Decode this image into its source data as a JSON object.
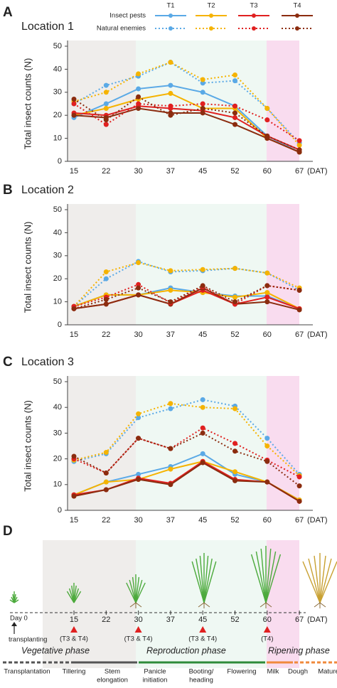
{
  "legend": {
    "columns": [
      {
        "name": "T1",
        "color": "#5aa9e6"
      },
      {
        "name": "T2",
        "color": "#f5b300"
      },
      {
        "name": "T3",
        "color": "#e02020"
      },
      {
        "name": "T4",
        "color": "#8b2c0f"
      }
    ],
    "rows": [
      {
        "name": "Insect pests",
        "dashed": false
      },
      {
        "name": "Natural enemies",
        "dashed": true
      }
    ]
  },
  "chart_data": [
    {
      "type": "line",
      "panel": "A",
      "title": "Location 1",
      "y_label": "Total insect counts (N)",
      "x_unit": "(DAT)",
      "categories": [
        15,
        22,
        30,
        37,
        45,
        52,
        60,
        67
      ],
      "ylim": [
        0,
        50
      ],
      "yticks": [
        0,
        10,
        20,
        30,
        40,
        50
      ],
      "series": [
        {
          "name": "T1",
          "group": "Insect pests",
          "color": "#5aa9e6",
          "dashed": false,
          "values": [
            19,
            25,
            31.5,
            33,
            30,
            24,
            11,
            4
          ]
        },
        {
          "name": "T2",
          "group": "Insect pests",
          "color": "#f5b300",
          "dashed": false,
          "values": [
            20,
            23,
            27,
            29.5,
            23,
            23,
            10,
            4
          ]
        },
        {
          "name": "T3",
          "group": "Insect pests",
          "color": "#e02020",
          "dashed": false,
          "values": [
            21,
            20,
            24,
            23,
            22,
            19,
            11,
            5
          ]
        },
        {
          "name": "T4",
          "group": "Insect pests",
          "color": "#8b2c0f",
          "dashed": false,
          "values": [
            20,
            19,
            23,
            21,
            21,
            16,
            10,
            4
          ]
        },
        {
          "name": "T1",
          "group": "Natural enemies",
          "color": "#5aa9e6",
          "dashed": true,
          "values": [
            25,
            33,
            37,
            43,
            34,
            35,
            23,
            8
          ]
        },
        {
          "name": "T2",
          "group": "Natural enemies",
          "color": "#f5b300",
          "dashed": true,
          "values": [
            26,
            30,
            38,
            43,
            35.5,
            37.5,
            23,
            7
          ]
        },
        {
          "name": "T3",
          "group": "Natural enemies",
          "color": "#e02020",
          "dashed": true,
          "values": [
            25,
            16,
            25,
            24,
            25,
            24,
            18,
            9
          ]
        },
        {
          "name": "T4",
          "group": "Natural enemies",
          "color": "#8b2c0f",
          "dashed": true,
          "values": [
            27,
            18,
            28,
            20,
            23,
            21,
            11,
            5
          ]
        }
      ]
    },
    {
      "type": "line",
      "panel": "B",
      "title": "Location 2",
      "y_label": "Total insect counts (N)",
      "x_unit": "(DAT)",
      "categories": [
        15,
        22,
        30,
        37,
        45,
        52,
        60,
        67
      ],
      "ylim": [
        0,
        50
      ],
      "yticks": [
        0,
        10,
        20,
        30,
        40,
        50
      ],
      "series": [
        {
          "name": "T1",
          "group": "Insect pests",
          "color": "#5aa9e6",
          "dashed": false,
          "values": [
            8,
            13,
            13,
            16,
            14,
            12.5,
            12.5,
            7
          ]
        },
        {
          "name": "T2",
          "group": "Insect pests",
          "color": "#f5b300",
          "dashed": false,
          "values": [
            8,
            13,
            13,
            15,
            14,
            12,
            14,
            7
          ]
        },
        {
          "name": "T3",
          "group": "Insect pests",
          "color": "#e02020",
          "dashed": false,
          "values": [
            7,
            9,
            13,
            9,
            15,
            9,
            12,
            7
          ]
        },
        {
          "name": "T4",
          "group": "Insect pests",
          "color": "#8b2c0f",
          "dashed": false,
          "values": [
            7,
            9,
            13,
            9,
            16,
            9,
            10,
            6.5
          ]
        },
        {
          "name": "T1",
          "group": "Natural enemies",
          "color": "#5aa9e6",
          "dashed": true,
          "values": [
            8,
            20,
            27.5,
            23,
            23.5,
            24.5,
            22.5,
            15
          ]
        },
        {
          "name": "T2",
          "group": "Natural enemies",
          "color": "#f5b300",
          "dashed": true,
          "values": [
            8,
            23,
            27,
            23.5,
            24,
            24.5,
            22.5,
            16
          ]
        },
        {
          "name": "T3",
          "group": "Natural enemies",
          "color": "#e02020",
          "dashed": true,
          "values": [
            8,
            12,
            17.5,
            9.5,
            16.5,
            9,
            17,
            15
          ]
        },
        {
          "name": "T4",
          "group": "Natural enemies",
          "color": "#8b2c0f",
          "dashed": true,
          "values": [
            7,
            11,
            16,
            10,
            17,
            10,
            17,
            15
          ]
        }
      ]
    },
    {
      "type": "line",
      "panel": "C",
      "title": "Location 3",
      "y_label": "Total insect counts (N)",
      "x_unit": "(DAT)",
      "categories": [
        15,
        22,
        30,
        37,
        45,
        52,
        60,
        67
      ],
      "ylim": [
        0,
        50
      ],
      "yticks": [
        0,
        10,
        20,
        30,
        40,
        50
      ],
      "series": [
        {
          "name": "T1",
          "group": "Insect pests",
          "color": "#5aa9e6",
          "dashed": false,
          "values": [
            6,
            11,
            14,
            17,
            22,
            14,
            11,
            4
          ]
        },
        {
          "name": "T2",
          "group": "Insect pests",
          "color": "#f5b300",
          "dashed": false,
          "values": [
            6,
            11,
            12,
            16,
            19,
            15,
            11,
            4
          ]
        },
        {
          "name": "T3",
          "group": "Insect pests",
          "color": "#e02020",
          "dashed": false,
          "values": [
            6,
            8,
            12.5,
            10.5,
            19,
            12,
            11,
            3.5
          ]
        },
        {
          "name": "T4",
          "group": "Insect pests",
          "color": "#8b2c0f",
          "dashed": false,
          "values": [
            5.5,
            8,
            12,
            10,
            18.5,
            11.5,
            11,
            3.5
          ]
        },
        {
          "name": "T1",
          "group": "Natural enemies",
          "color": "#5aa9e6",
          "dashed": true,
          "values": [
            19,
            22,
            36,
            39.5,
            43,
            40.5,
            28,
            14
          ]
        },
        {
          "name": "T2",
          "group": "Natural enemies",
          "color": "#f5b300",
          "dashed": true,
          "values": [
            19.5,
            22.5,
            37.5,
            41.5,
            40,
            39.5,
            25,
            13.5
          ]
        },
        {
          "name": "T3",
          "group": "Natural enemies",
          "color": "#e02020",
          "dashed": true,
          "values": [
            20,
            14.5,
            28,
            24,
            32,
            26,
            19.5,
            13
          ]
        },
        {
          "name": "T4",
          "group": "Natural enemies",
          "color": "#8b2c0f",
          "dashed": true,
          "values": [
            21,
            14.5,
            28,
            24,
            30,
            23,
            19,
            9.5
          ]
        }
      ]
    }
  ],
  "timeline": {
    "panel": "D",
    "start": "Day 0",
    "start_note": "transplanting",
    "ticks": [
      15,
      22,
      30,
      37,
      45,
      52,
      60,
      67
    ],
    "unit": "(DAT)",
    "applications": [
      {
        "dat": 15,
        "label": "(T3 & T4)"
      },
      {
        "dat": 30,
        "label": "(T3 & T4)"
      },
      {
        "dat": 45,
        "label": "(T3 & T4)"
      },
      {
        "dat": 60,
        "label": "(T4)"
      }
    ],
    "phases": [
      "Vegetative phase",
      "Reproduction phase",
      "Ripening phase"
    ],
    "stages": [
      [
        "Transplantation"
      ],
      [
        "Tillering"
      ],
      [
        "Stem",
        "elongation"
      ],
      [
        "Panicle",
        "initiation"
      ],
      [
        "Booting/",
        "heading"
      ],
      [
        "Flowering"
      ],
      [
        "Milk"
      ],
      [
        "Dough"
      ],
      [
        "Mature"
      ]
    ]
  }
}
